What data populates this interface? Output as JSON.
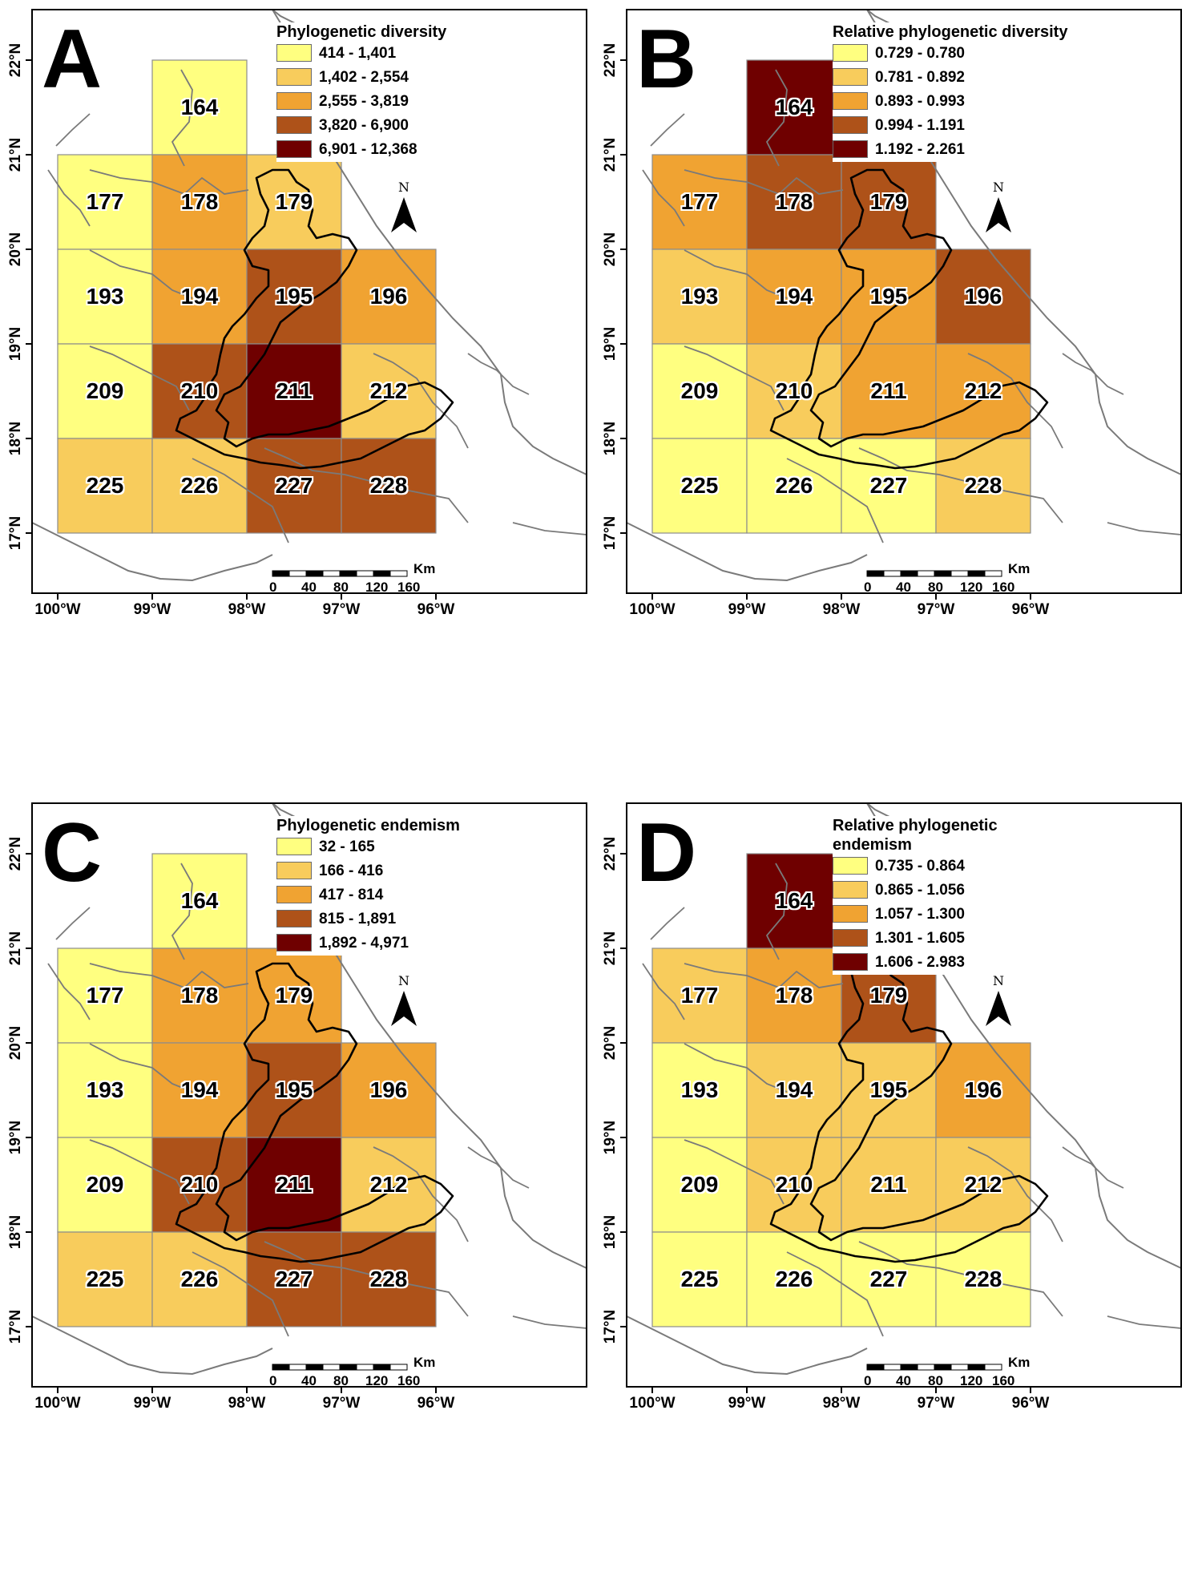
{
  "axes": {
    "x_ticks": [
      "100°W",
      "99°W",
      "98°W",
      "97°W",
      "96°W"
    ],
    "y_ticks": [
      "22°N",
      "21°N",
      "20°N",
      "19°N",
      "18°N",
      "17°N"
    ]
  },
  "scale_bar": {
    "unit": "Km",
    "labels": [
      "0",
      "40",
      "80",
      "120",
      "160"
    ]
  },
  "north_arrow": {
    "letter": "N"
  },
  "cells": [
    "164",
    "177",
    "178",
    "179",
    "193",
    "194",
    "195",
    "196",
    "209",
    "210",
    "211",
    "212",
    "225",
    "226",
    "227",
    "228"
  ],
  "cell_grid_positions": {
    "164": [
      1,
      0
    ],
    "177": [
      0,
      1
    ],
    "178": [
      1,
      1
    ],
    "179": [
      2,
      1
    ],
    "193": [
      0,
      2
    ],
    "194": [
      1,
      2
    ],
    "195": [
      2,
      2
    ],
    "196": [
      3,
      2
    ],
    "209": [
      0,
      3
    ],
    "210": [
      1,
      3
    ],
    "211": [
      2,
      3
    ],
    "212": [
      3,
      3
    ],
    "225": [
      0,
      4
    ],
    "226": [
      1,
      4
    ],
    "227": [
      2,
      4
    ],
    "228": [
      3,
      4
    ]
  },
  "colors": {
    "class_colors": [
      "#FFFF80",
      "#F8CC5C",
      "#F0A332",
      "#AE5219",
      "#6F0000"
    ],
    "grid_line": "#8c8c8c",
    "coast_line": "#7a7a7a",
    "state_line": "#000000"
  },
  "panels": [
    {
      "letter": "A",
      "legend_title": "Phylogenetic diversity",
      "legend_classes": [
        "414 - 1,401",
        "1,402 - 2,554",
        "2,555 - 3,819",
        "3,820 - 6,900",
        "6,901 - 12,368"
      ],
      "cell_classes": {
        "164": 0,
        "177": 0,
        "178": 2,
        "179": 1,
        "193": 0,
        "194": 2,
        "195": 3,
        "196": 2,
        "209": 0,
        "210": 3,
        "211": 4,
        "212": 1,
        "225": 1,
        "226": 1,
        "227": 3,
        "228": 3
      }
    },
    {
      "letter": "B",
      "legend_title": "Relative phylogenetic diversity",
      "legend_classes": [
        "0.729 - 0.780",
        "0.781 - 0.892",
        "0.893 - 0.993",
        "0.994 - 1.191",
        "1.192 - 2.261"
      ],
      "cell_classes": {
        "164": 4,
        "177": 2,
        "178": 3,
        "179": 3,
        "193": 1,
        "194": 2,
        "195": 2,
        "196": 3,
        "209": 0,
        "210": 1,
        "211": 2,
        "212": 2,
        "225": 0,
        "226": 0,
        "227": 0,
        "228": 1
      }
    },
    {
      "letter": "C",
      "legend_title": "Phylogenetic endemism",
      "legend_classes": [
        "32 - 165",
        "166 - 416",
        "417 - 814",
        "815 - 1,891",
        "1,892 - 4,971"
      ],
      "cell_classes": {
        "164": 0,
        "177": 0,
        "178": 2,
        "179": 2,
        "193": 0,
        "194": 2,
        "195": 3,
        "196": 2,
        "209": 0,
        "210": 3,
        "211": 4,
        "212": 1,
        "225": 1,
        "226": 1,
        "227": 3,
        "228": 3
      }
    },
    {
      "letter": "D",
      "legend_title": "Relative phylogenetic endemism",
      "legend_classes": [
        "0.735 - 0.864",
        "0.865 - 1.056",
        "1.057 - 1.300",
        "1.301 - 1.605",
        "1.606 - 2.983"
      ],
      "cell_classes": {
        "164": 4,
        "177": 1,
        "178": 2,
        "179": 3,
        "193": 0,
        "194": 1,
        "195": 1,
        "196": 2,
        "209": 0,
        "210": 1,
        "211": 1,
        "212": 1,
        "225": 0,
        "226": 0,
        "227": 0,
        "228": 0
      }
    }
  ]
}
